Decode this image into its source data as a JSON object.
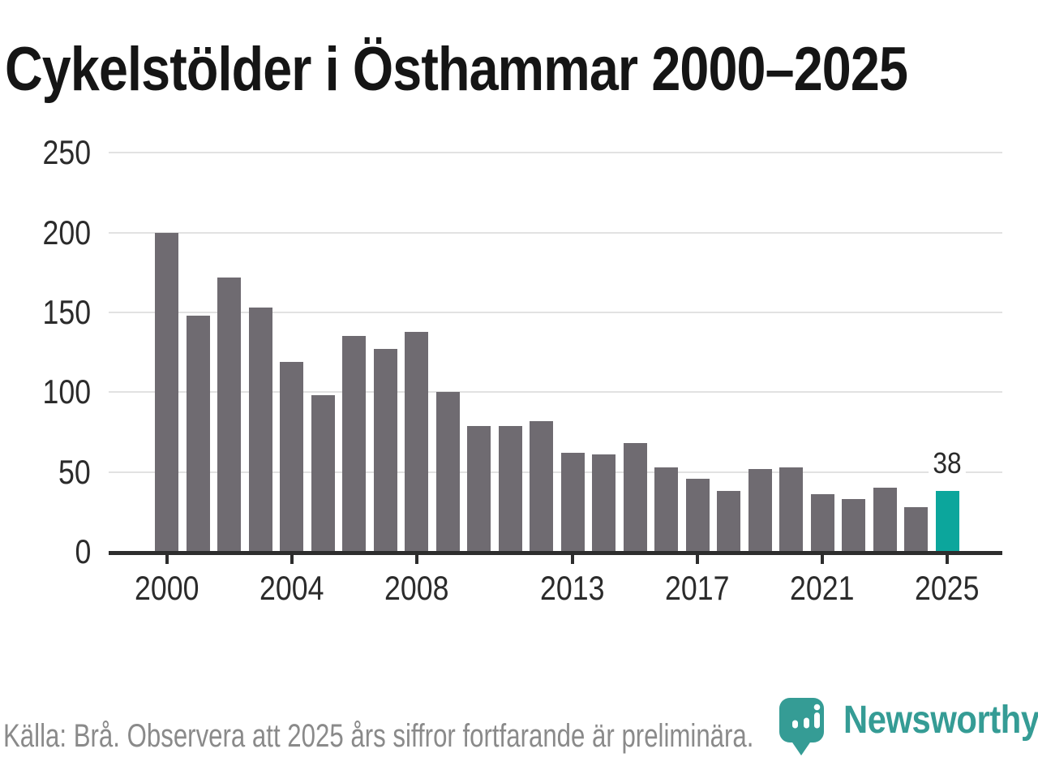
{
  "header": {
    "title": "Cykelstölder i Östhammar 2000–2025"
  },
  "chart_data": {
    "type": "bar",
    "title": "Cykelstölder i Östhammar 2000–2025",
    "x": [
      2000,
      2001,
      2002,
      2003,
      2004,
      2005,
      2006,
      2007,
      2008,
      2009,
      2010,
      2011,
      2012,
      2013,
      2014,
      2015,
      2016,
      2017,
      2018,
      2019,
      2020,
      2021,
      2022,
      2023,
      2024,
      2025
    ],
    "values": [
      200,
      148,
      172,
      153,
      119,
      98,
      135,
      127,
      138,
      100,
      79,
      79,
      82,
      62,
      61,
      68,
      53,
      46,
      38,
      52,
      53,
      36,
      33,
      40,
      28,
      38
    ],
    "highlight": {
      "year": 2025,
      "value": 38,
      "label": "38"
    },
    "ylim": [
      0,
      250
    ],
    "yticks": [
      0,
      50,
      100,
      150,
      200,
      250
    ],
    "xticks": [
      2000,
      2004,
      2008,
      2013,
      2017,
      2021,
      2025
    ],
    "grid": true,
    "legend": false
  },
  "footer": {
    "source": "Källa: Brå. Observera att 2025 års siffror fortfarande är preliminära.",
    "brand": "Newsworthy"
  },
  "colors": {
    "bar": "#6f6b71",
    "highlight": "#0ca69c",
    "brand_teal": "#359c95",
    "grid": "#e2e2e2",
    "axis": "#2d2d2d",
    "tick_label": "#2b2b2b",
    "title": "#151515",
    "muted": "#8a8a8a",
    "background": "#ffffff"
  }
}
